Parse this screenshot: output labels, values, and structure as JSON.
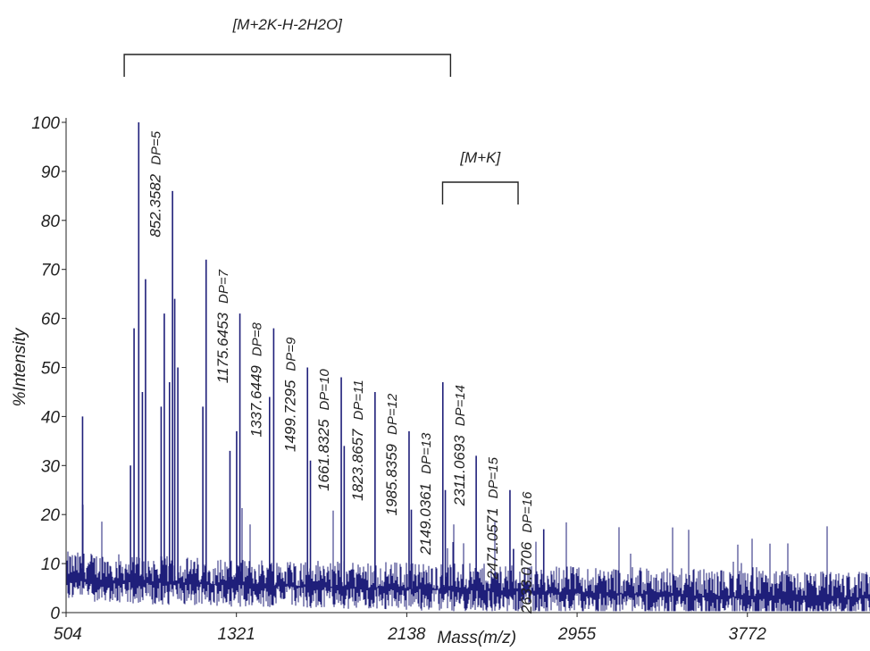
{
  "chart_data": {
    "type": "line",
    "xlabel": "Mass(m/z)",
    "ylabel": "%Intensity",
    "xlim": [
      504,
      4360
    ],
    "ylim": [
      0,
      100
    ],
    "x_ticks": [
      504,
      1321,
      2138,
      2955,
      3772
    ],
    "y_ticks": [
      0,
      10,
      20,
      30,
      40,
      50,
      60,
      70,
      80,
      90,
      100
    ],
    "x_tick_labels": [
      "504",
      "1321",
      "2138",
      "2955",
      "3772"
    ],
    "y_tick_labels": [
      "0",
      "10",
      "20",
      "30",
      "40",
      "50",
      "60",
      "70",
      "80",
      "90",
      "100"
    ],
    "series": [
      {
        "color": "#1f1f7a",
        "baseline": [
          {
            "x": 504,
            "y": 7
          },
          {
            "x": 1000,
            "y": 6
          },
          {
            "x": 1500,
            "y": 5.5
          },
          {
            "x": 2000,
            "y": 5
          },
          {
            "x": 2500,
            "y": 4.5
          },
          {
            "x": 3000,
            "y": 4
          },
          {
            "x": 3500,
            "y": 3.5
          },
          {
            "x": 4000,
            "y": 3
          },
          {
            "x": 4360,
            "y": 3
          }
        ],
        "peaks": [
          {
            "x": 583,
            "y": 40
          },
          {
            "x": 584,
            "y": 22
          },
          {
            "x": 813,
            "y": 30
          },
          {
            "x": 830,
            "y": 58
          },
          {
            "x": 852.3582,
            "y": 100
          },
          {
            "x": 870,
            "y": 45
          },
          {
            "x": 885,
            "y": 68
          },
          {
            "x": 960,
            "y": 42
          },
          {
            "x": 975,
            "y": 61
          },
          {
            "x": 1000,
            "y": 47
          },
          {
            "x": 1014.5,
            "y": 86
          },
          {
            "x": 1025,
            "y": 64
          },
          {
            "x": 1040,
            "y": 50
          },
          {
            "x": 1160,
            "y": 42
          },
          {
            "x": 1175.6453,
            "y": 72
          },
          {
            "x": 1290,
            "y": 33
          },
          {
            "x": 1322,
            "y": 37
          },
          {
            "x": 1337.6449,
            "y": 61
          },
          {
            "x": 1480,
            "y": 44
          },
          {
            "x": 1499.7295,
            "y": 58
          },
          {
            "x": 1661.8325,
            "y": 50
          },
          {
            "x": 1676,
            "y": 31
          },
          {
            "x": 1823.8657,
            "y": 48
          },
          {
            "x": 1838,
            "y": 34
          },
          {
            "x": 1985.8359,
            "y": 45
          },
          {
            "x": 2149.0361,
            "y": 37
          },
          {
            "x": 2160,
            "y": 21
          },
          {
            "x": 2311.0693,
            "y": 47
          },
          {
            "x": 2323,
            "y": 25
          },
          {
            "x": 2471.0571,
            "y": 32
          },
          {
            "x": 2633.0706,
            "y": 25
          },
          {
            "x": 2650,
            "y": 13
          },
          {
            "x": 2795,
            "y": 17
          }
        ]
      }
    ],
    "annotations": [
      {
        "x": 852.3582,
        "y": 100,
        "mass": "852.3582",
        "dp": "DP=5"
      },
      {
        "x": 1175.6453,
        "y": 72,
        "mass": "1175.6453",
        "dp": "DP=7"
      },
      {
        "x": 1337.6449,
        "y": 61,
        "mass": "1337.6449",
        "dp": "DP=8"
      },
      {
        "x": 1499.7295,
        "y": 58,
        "mass": "1499.7295",
        "dp": "DP=9"
      },
      {
        "x": 1661.8325,
        "y": 50,
        "mass": "1661.8325",
        "dp": "DP=10"
      },
      {
        "x": 1823.8657,
        "y": 48,
        "mass": "1823.8657",
        "dp": "DP=11"
      },
      {
        "x": 1985.8359,
        "y": 45,
        "mass": "1985.8359",
        "dp": "DP=12"
      },
      {
        "x": 2149.0361,
        "y": 37,
        "mass": "2149.0361",
        "dp": "DP=13"
      },
      {
        "x": 2311.0693,
        "y": 47,
        "mass": "2311.0693",
        "dp": "DP=14"
      },
      {
        "x": 2471.0571,
        "y": 32,
        "mass": "2471.0571",
        "dp": "DP=15"
      },
      {
        "x": 2633.0706,
        "y": 25,
        "mass": "2633.0706",
        "dp": "DP=16"
      }
    ],
    "groups": [
      {
        "label": "[M+2K-H-2H2O]",
        "x_start": 800,
        "x_end": 2348
      },
      {
        "label": "[M+K]",
        "x_start": 2327,
        "x_end": 2672
      }
    ]
  }
}
